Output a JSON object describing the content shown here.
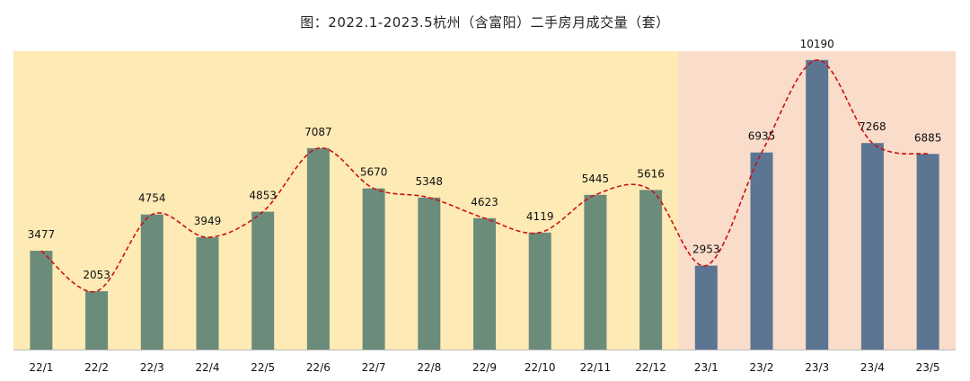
{
  "chart_data": {
    "type": "bar",
    "title": "图：2022.1-2023.5杭州（含富阳）二手房月成交量（套）",
    "categories": [
      "22/1",
      "22/2",
      "22/3",
      "22/4",
      "22/5",
      "22/6",
      "22/7",
      "22/8",
      "22/9",
      "22/10",
      "22/11",
      "22/12",
      "23/1",
      "23/2",
      "23/3",
      "23/4",
      "23/5"
    ],
    "values": [
      3477,
      2053,
      4754,
      3949,
      4853,
      7087,
      5670,
      5348,
      4623,
      4119,
      5445,
      5616,
      2953,
      6935,
      10190,
      7268,
      6885
    ],
    "ylim": [
      0,
      10500
    ],
    "grid": false,
    "overlay": "smoothed dashed trend line through bar tops",
    "colors": {
      "bg_2022": "#fdeab5",
      "bg_2023": "#f9dcc9",
      "bar_2022": "#6b8b7b",
      "bar_2023": "#5b7593",
      "trend_line": "#cc1111"
    }
  }
}
